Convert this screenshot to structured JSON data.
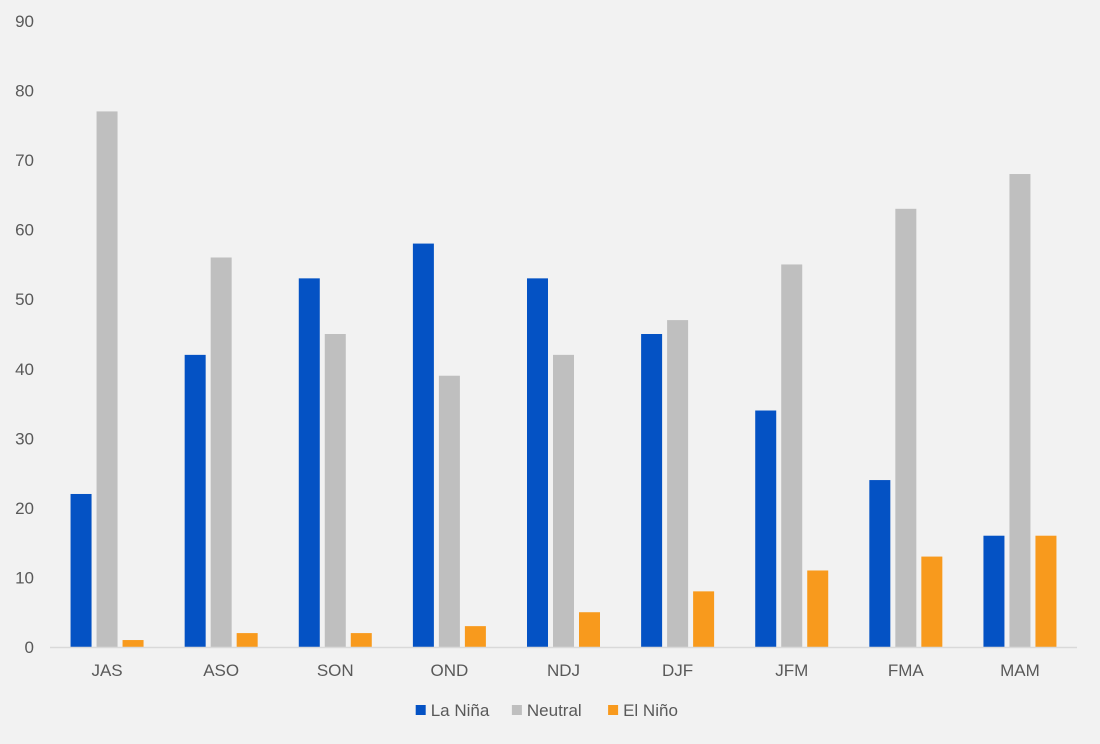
{
  "chart_data": {
    "type": "bar",
    "title": "",
    "xlabel": "",
    "ylabel": "",
    "categories": [
      "JAS",
      "ASO",
      "SON",
      "OND",
      "NDJ",
      "DJF",
      "JFM",
      "FMA",
      "MAM"
    ],
    "series": [
      {
        "name": "La Niña",
        "color": "#0452c4",
        "values": [
          22,
          42,
          53,
          58,
          53,
          45,
          34,
          24,
          16
        ]
      },
      {
        "name": "Neutral",
        "color": "#bfbfbf",
        "values": [
          77,
          56,
          45,
          39,
          42,
          47,
          55,
          63,
          68
        ]
      },
      {
        "name": "El Niño",
        "color": "#f89a1d",
        "values": [
          1,
          2,
          2,
          3,
          5,
          8,
          11,
          13,
          16
        ]
      }
    ],
    "ylim": [
      0,
      90
    ],
    "yticks": [
      "0",
      "10",
      "20",
      "30",
      "40",
      "50",
      "60",
      "70",
      "80",
      "90"
    ],
    "grid": false,
    "legend_position": "bottom",
    "colors": {
      "background": "#f2f2f2",
      "axis_line": "#d9d9d9",
      "text": "#595959"
    }
  }
}
